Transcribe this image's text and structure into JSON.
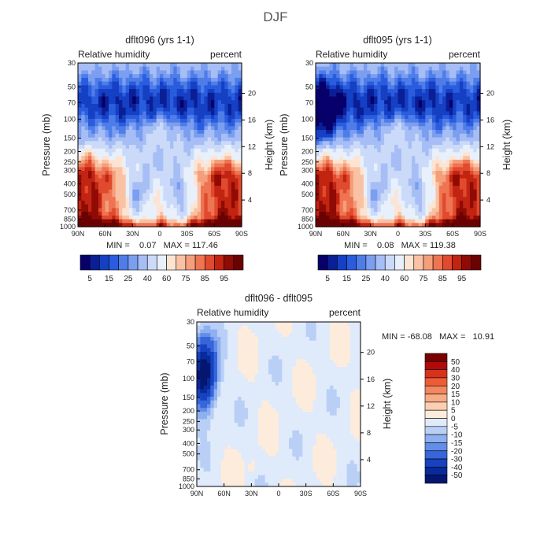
{
  "figure_title": "DJF",
  "chart_data": [
    {
      "type": "heatmap",
      "title": "dflt096 (yrs 1-1)",
      "subtitle_left": "Relative humidity",
      "subtitle_right": "percent",
      "ylabel": "Pressure (mb)",
      "ylabel_right": "Height (km)",
      "x_ticks": [
        "90N",
        "60N",
        "30N",
        "0",
        "30S",
        "60S",
        "90S"
      ],
      "y_ticks": [
        "30",
        "50",
        "70",
        "100",
        "150",
        "200",
        "250",
        "300",
        "400",
        "500",
        "700",
        "850",
        "1000"
      ],
      "y_ticks_right": [
        "20",
        "16",
        "12",
        "8",
        "4"
      ],
      "stats": "MIN =    0.07   MAX = 117.46",
      "colorbar_labels": [
        "5",
        "15",
        "25",
        "40",
        "60",
        "75",
        "85",
        "95"
      ],
      "colorbar_levels": [
        5,
        10,
        15,
        20,
        25,
        30,
        40,
        50,
        60,
        65,
        70,
        75,
        80,
        85,
        90,
        95
      ]
    },
    {
      "type": "heatmap",
      "title": "dflt095 (yrs 1-1)",
      "subtitle_left": "Relative humidity",
      "subtitle_right": "percent",
      "ylabel": "Pressure (mb)",
      "ylabel_right": "Height (km)",
      "x_ticks": [
        "90N",
        "60N",
        "30N",
        "0",
        "30S",
        "60S",
        "90S"
      ],
      "y_ticks": [
        "30",
        "50",
        "70",
        "100",
        "150",
        "200",
        "250",
        "300",
        "400",
        "500",
        "700",
        "850",
        "1000"
      ],
      "y_ticks_right": [
        "20",
        "16",
        "12",
        "8",
        "4"
      ],
      "stats": "MIN =    0.08   MAX = 119.38",
      "colorbar_labels": [
        "5",
        "15",
        "25",
        "40",
        "60",
        "75",
        "85",
        "95"
      ],
      "colorbar_levels": [
        5,
        10,
        15,
        20,
        25,
        30,
        40,
        50,
        60,
        65,
        70,
        75,
        80,
        85,
        90,
        95
      ]
    },
    {
      "type": "heatmap",
      "title": "dflt096 - dflt095",
      "subtitle_left": "Relative humidity",
      "subtitle_right": "percent",
      "ylabel": "Pressure (mb)",
      "ylabel_right": "Height (km)",
      "x_ticks": [
        "90N",
        "60N",
        "30N",
        "0",
        "30S",
        "60S",
        "90S"
      ],
      "y_ticks": [
        "30",
        "50",
        "70",
        "100",
        "150",
        "200",
        "250",
        "300",
        "400",
        "500",
        "700",
        "850",
        "1000"
      ],
      "y_ticks_right": [
        "20",
        "16",
        "12",
        "8",
        "4"
      ],
      "stats": "MIN = -68.08   MAX =   10.91",
      "colorbar_labels": [
        "50",
        "40",
        "30",
        "20",
        "15",
        "10",
        "5",
        "0",
        "-5",
        "-10",
        "-15",
        "-20",
        "-30",
        "-40",
        "-50"
      ],
      "colorbar_levels": [
        -50,
        -40,
        -30,
        -20,
        -15,
        -10,
        -5,
        0,
        5,
        10,
        15,
        20,
        30,
        40,
        50
      ]
    }
  ],
  "colors": {
    "rh_scale": [
      "#08006a",
      "#0a1f96",
      "#1640c4",
      "#2a5cde",
      "#4f7de8",
      "#7b9ef0",
      "#a6bef5",
      "#cbdaf8",
      "#e8f0fb",
      "#fde4d2",
      "#f9c2a4",
      "#f59e7b",
      "#ee7452",
      "#e04a2e",
      "#c22412",
      "#8f0b04",
      "#6b0202"
    ],
    "diff_scale": [
      "#7a0000",
      "#b00a0a",
      "#d8311c",
      "#ec5d36",
      "#f3875f",
      "#f7ab87",
      "#fbcfb1",
      "#fdecdc",
      "#dfeafb",
      "#b9cff6",
      "#8eb0f0",
      "#628de8",
      "#3766db",
      "#1742c0",
      "#082a9a",
      "#041670"
    ]
  }
}
